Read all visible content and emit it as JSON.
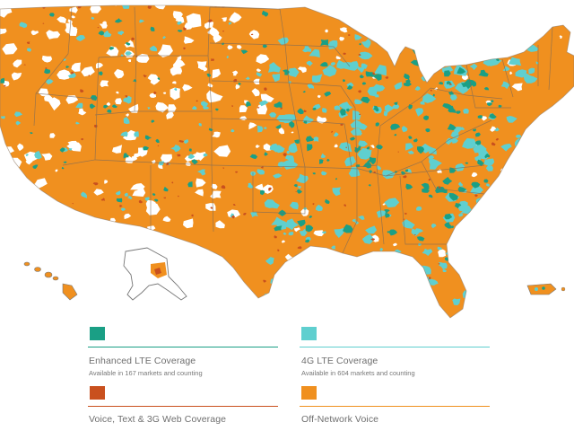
{
  "colors": {
    "enhanced_lte": "#1a9f85",
    "lte_4g": "#5fcfcf",
    "voice_3g": "#c9501e",
    "off_network": "#f0901f",
    "state_border": "#7b6a5a",
    "background": "#ffffff"
  },
  "legend": {
    "enhanced_lte": {
      "title": "Enhanced LTE Coverage",
      "subtitle": "Available in 167 markets and counting"
    },
    "lte_4g": {
      "title": "4G LTE Coverage",
      "subtitle": "Available in 604 markets and counting"
    },
    "voice_3g": {
      "title": "Voice, Text & 3G Web Coverage"
    },
    "off_network": {
      "title": "Off-Network Voice"
    }
  }
}
